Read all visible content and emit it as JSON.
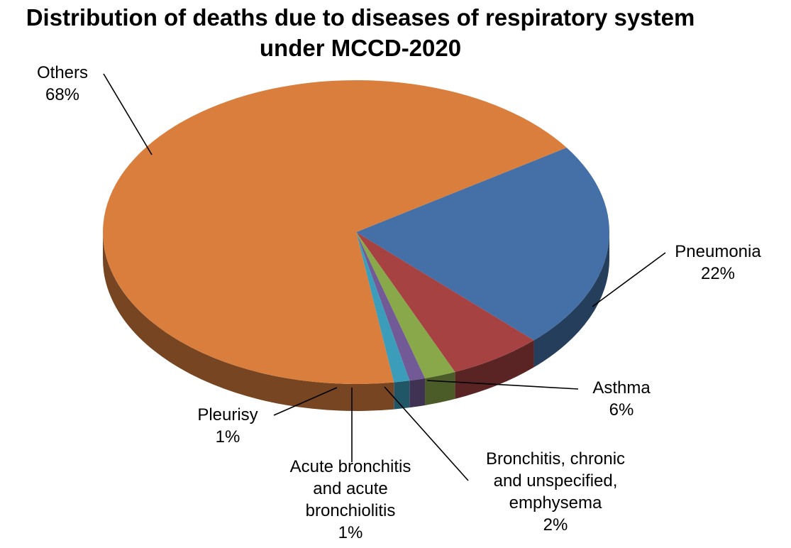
{
  "chart_data": {
    "type": "pie",
    "title": "Distribution of deaths due to diseases of respiratory system under MCCD-2020",
    "title_lines": [
      "Distribution of deaths due to diseases of respiratory system",
      "under MCCD-2020"
    ],
    "slices": [
      {
        "category": "Others",
        "label_lines": [
          "Others",
          "68%"
        ],
        "value": 68,
        "value_label": "68%",
        "color": "#D97E3C"
      },
      {
        "category": "Pneumonia",
        "label_lines": [
          "Pneumonia",
          "22%"
        ],
        "value": 22,
        "value_label": "22%",
        "color": "#4470A7"
      },
      {
        "category": "Asthma",
        "label_lines": [
          "Asthma",
          "6%"
        ],
        "value": 6,
        "value_label": "6%",
        "color": "#A64242"
      },
      {
        "category": "Bronchitis, chronic and unspecified, emphysema",
        "label_lines": [
          "Bronchitis, chronic",
          "and unspecified,",
          "emphysema",
          "2%"
        ],
        "value": 2,
        "value_label": "2%",
        "color": "#88A84A"
      },
      {
        "category": "Acute bronchitis and acute bronchiolitis",
        "label_lines": [
          "Acute bronchitis",
          "and acute",
          "bronchiolitis",
          "1%"
        ],
        "value": 1,
        "value_label": "1%",
        "color": "#725A97"
      },
      {
        "category": "Pleurisy",
        "label_lines": [
          "Pleurisy",
          "1%"
        ],
        "value": 1,
        "value_label": "1%",
        "color": "#3B9DBA"
      }
    ],
    "legend": "none",
    "style": "3d-pie"
  }
}
